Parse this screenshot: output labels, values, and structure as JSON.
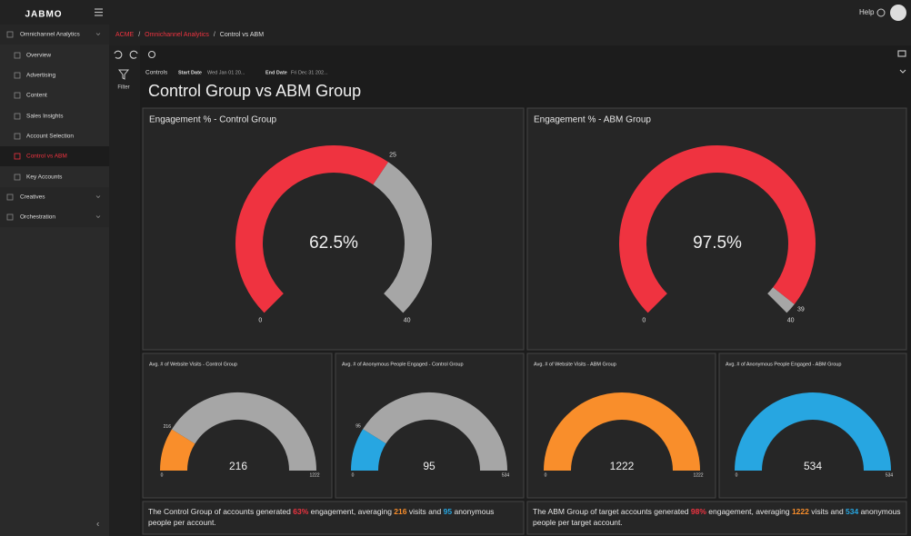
{
  "header": {
    "logo": "JABMO",
    "help": "Help"
  },
  "sidebar": {
    "items": [
      {
        "label": "Omnichannel Analytics",
        "level": 0
      },
      {
        "label": "Overview",
        "level": 1
      },
      {
        "label": "Advertising",
        "level": 1
      },
      {
        "label": "Content",
        "level": 1
      },
      {
        "label": "Sales Insights",
        "level": 1
      },
      {
        "label": "Account Selection",
        "level": 1
      },
      {
        "label": "Control vs ABM",
        "level": 1
      },
      {
        "label": "Key Accounts",
        "level": 1
      },
      {
        "label": "Creatives",
        "level": 0
      },
      {
        "label": "Orchestration",
        "level": 0
      }
    ],
    "active": 6
  },
  "breadcrumb": {
    "items": [
      "ACME",
      "Omnichannel Analytics",
      "Control vs ABM"
    ],
    "separator": "/"
  },
  "filter": "Filter",
  "controls": {
    "label": "Controls",
    "start_label": "Start Date",
    "start_value": "Wed Jan 01 20...",
    "end_label": "End Date",
    "end_value": "Fri Dec 31 202..."
  },
  "title": "Control Group vs ABM Group",
  "track_color": "#a6a6a6",
  "gauges": [
    {
      "title": "Engagement % - Control Group",
      "style": "arc",
      "min": 0,
      "max": 40,
      "value": 25,
      "center_label": "62.5%",
      "color": "#ef3340"
    },
    {
      "title": "Engagement % - ABM Group",
      "style": "arc",
      "min": 0,
      "max": 40,
      "value": 39,
      "center_label": "97.5%",
      "color": "#ef3340"
    },
    {
      "title": "Avg. # of Website Visits - Control Group",
      "style": "semi",
      "min": 0,
      "max": 1222,
      "value": 216,
      "color": "#f98e2b"
    },
    {
      "title": "Avg. # of Anonymous People Engaged - Control Group",
      "style": "semi",
      "min": 0,
      "max": 534,
      "value": 95,
      "color": "#27a6e1"
    },
    {
      "title": "Avg. # of Website Visits - ABM Group",
      "style": "semi",
      "min": 0,
      "max": 1222,
      "value": 1222,
      "color": "#f98e2b"
    },
    {
      "title": "Avg. # of Anonymous People Engaged - ABM Group",
      "style": "semi",
      "min": 0,
      "max": 534,
      "value": 534,
      "color": "#27a6e1"
    }
  ],
  "summaries": [
    {
      "segments": [
        {
          "text": "The Control Group of accounts generated "
        },
        {
          "text": "63%",
          "color": "#ef3340"
        },
        {
          "text": " engagement, averaging "
        },
        {
          "text": "216",
          "color": "#f98e2b"
        },
        {
          "text": " visits and "
        },
        {
          "text": "95",
          "color": "#27a6e1"
        },
        {
          "text": " anonymous people per account."
        }
      ]
    },
    {
      "segments": [
        {
          "text": "The ABM Group of target accounts generated "
        },
        {
          "text": "98%",
          "color": "#ef3340"
        },
        {
          "text": " engagement, averaging "
        },
        {
          "text": "1222",
          "color": "#f98e2b"
        },
        {
          "text": " visits and "
        },
        {
          "text": "534",
          "color": "#27a6e1"
        },
        {
          "text": " anonymous people per target account."
        }
      ]
    }
  ]
}
